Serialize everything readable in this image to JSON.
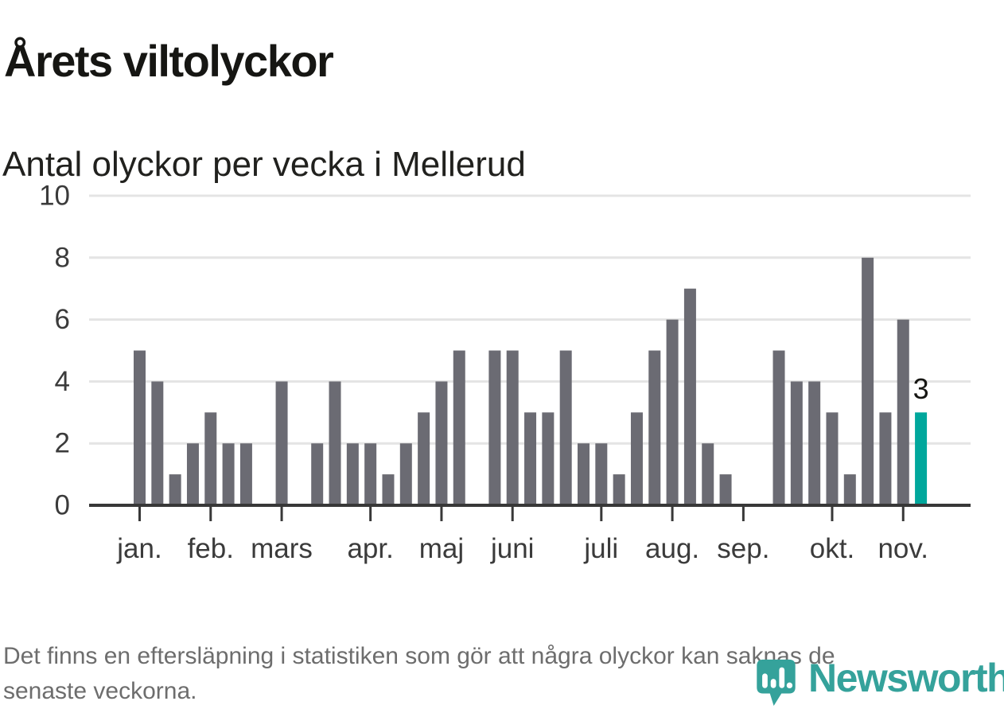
{
  "header": {
    "title": "Årets viltolyckor",
    "subtitle": "Antal olyckor per vecka i Mellerud"
  },
  "chart_data": {
    "type": "bar",
    "title": "Årets viltolyckor",
    "subtitle": "Antal olyckor per vecka i Mellerud",
    "xlabel": "",
    "ylabel": "",
    "ylim": [
      0,
      10
    ],
    "yticks": [
      0,
      2,
      4,
      6,
      8,
      10
    ],
    "grid": "horizontal",
    "x_unit": "vecka",
    "values": [
      5,
      4,
      1,
      2,
      3,
      2,
      2,
      0,
      4,
      0,
      2,
      4,
      2,
      2,
      1,
      2,
      3,
      4,
      5,
      0,
      5,
      5,
      3,
      3,
      5,
      2,
      2,
      1,
      3,
      5,
      6,
      7,
      2,
      1,
      0,
      0,
      5,
      4,
      4,
      3,
      1,
      8,
      3,
      6,
      3
    ],
    "month_ticks": [
      {
        "label": "jan.",
        "week_index": 0
      },
      {
        "label": "feb.",
        "week_index": 4
      },
      {
        "label": "mars",
        "week_index": 8
      },
      {
        "label": "apr.",
        "week_index": 13
      },
      {
        "label": "maj",
        "week_index": 17
      },
      {
        "label": "juni",
        "week_index": 21
      },
      {
        "label": "juli",
        "week_index": 26
      },
      {
        "label": "aug.",
        "week_index": 30
      },
      {
        "label": "sep.",
        "week_index": 34
      },
      {
        "label": "okt.",
        "week_index": 39
      },
      {
        "label": "nov.",
        "week_index": 43
      }
    ],
    "highlight": {
      "index": 44,
      "value": 3,
      "label": "3",
      "color": "#00a79c"
    },
    "bar_color": "#6b6b73",
    "grid_color": "#e4e4e4",
    "axis_color": "#383838",
    "legend_position": "none"
  },
  "footer": {
    "lines": [
      "Det finns en eftersläpning i statistiken som gör att några olyckor kan saknas de",
      "senaste veckorna."
    ]
  },
  "logo": {
    "text": "Newsworthy",
    "color": "#35a29b",
    "icon": "newsworthy-bubble-chart-icon"
  }
}
